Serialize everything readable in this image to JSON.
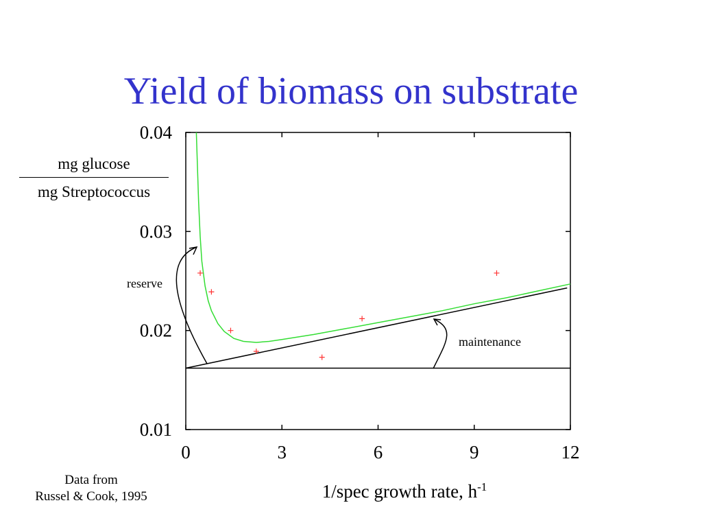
{
  "slide": {
    "title": "Yield of biomass on substrate",
    "source_line1": "Data from",
    "source_line2": "Russel & Cook, 1995"
  },
  "colors": {
    "title": "#3333cc",
    "fit_curve": "#33dd33",
    "data_points": "#ff3333",
    "lines": "#000000"
  },
  "chart_data": {
    "type": "scatter",
    "title": "Yield of biomass on substrate",
    "xlabel": "1/spec growth rate, h",
    "xlabel_sup": "-1",
    "ylabel_numerator": "mg glucose",
    "ylabel_denominator": "mg Streptococcus",
    "xlim": [
      0,
      12
    ],
    "ylim": [
      0.01,
      0.04
    ],
    "x_ticks": [
      0,
      3,
      6,
      9,
      12
    ],
    "x_tick_labels": [
      "0",
      "3",
      "6",
      "9",
      "12"
    ],
    "y_ticks": [
      0.01,
      0.02,
      0.03,
      0.04
    ],
    "y_tick_labels": [
      "0.01",
      "0.02",
      "0.03",
      "0.04"
    ],
    "grid": false,
    "series": [
      {
        "kind": "points",
        "x": [
          0.45,
          0.8,
          1.4,
          2.2,
          4.25,
          5.5,
          9.7
        ],
        "y": [
          0.0258,
          0.0239,
          0.02,
          0.0179,
          0.0173,
          0.0212,
          0.0258
        ]
      },
      {
        "kind": "fit_curve",
        "x": [
          0.33,
          0.36,
          0.4,
          0.45,
          0.5,
          0.6,
          0.7,
          0.8,
          1.0,
          1.2,
          1.5,
          1.8,
          2.2,
          2.6,
          3.0,
          4.0,
          5.0,
          6.0,
          7.0,
          8.0,
          9.0,
          10.0,
          11.0,
          12.0
        ],
        "y": [
          0.04,
          0.037,
          0.033,
          0.0295,
          0.027,
          0.0245,
          0.023,
          0.022,
          0.0207,
          0.0199,
          0.0192,
          0.0189,
          0.0188,
          0.0189,
          0.0191,
          0.0196,
          0.0202,
          0.0208,
          0.0214,
          0.022,
          0.0227,
          0.0233,
          0.024,
          0.0247
        ]
      },
      {
        "kind": "maintenance_line",
        "x": [
          0,
          11.9
        ],
        "y": [
          0.0162,
          0.0243
        ]
      },
      {
        "kind": "baseline",
        "x": [
          0,
          12
        ],
        "y": [
          0.0162,
          0.0162
        ]
      }
    ],
    "annotations": [
      {
        "text": "reserve"
      },
      {
        "text": "maintenance"
      }
    ]
  }
}
